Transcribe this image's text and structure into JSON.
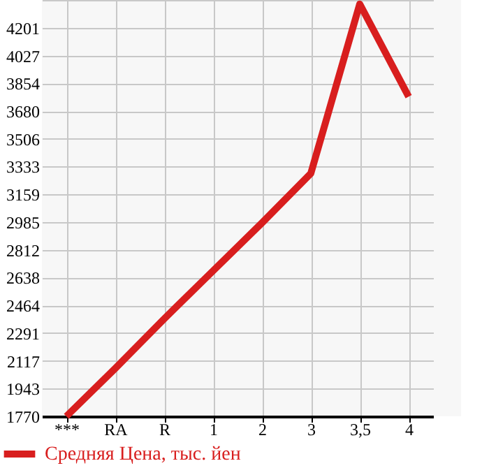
{
  "chart_data": {
    "type": "line",
    "categories": [
      "***",
      "RA",
      "R",
      "1",
      "2",
      "3",
      "3,5",
      "4"
    ],
    "series": [
      {
        "name": "Средняя Цена, тыс. йен",
        "color": "#d81e1e",
        "values": [
          1770,
          2070,
          2380,
          2680,
          2980,
          3290,
          4350,
          3770
        ]
      }
    ],
    "ylim": [
      1770,
      4375
    ],
    "yticks": [
      1770,
      1943,
      2117,
      2291,
      2464,
      2638,
      2812,
      2985,
      3159,
      3333,
      3506,
      3680,
      3854,
      4027,
      4201,
      {
        "value": 4375,
        "label": null
      }
    ],
    "grid": true,
    "legend": "bottom"
  }
}
